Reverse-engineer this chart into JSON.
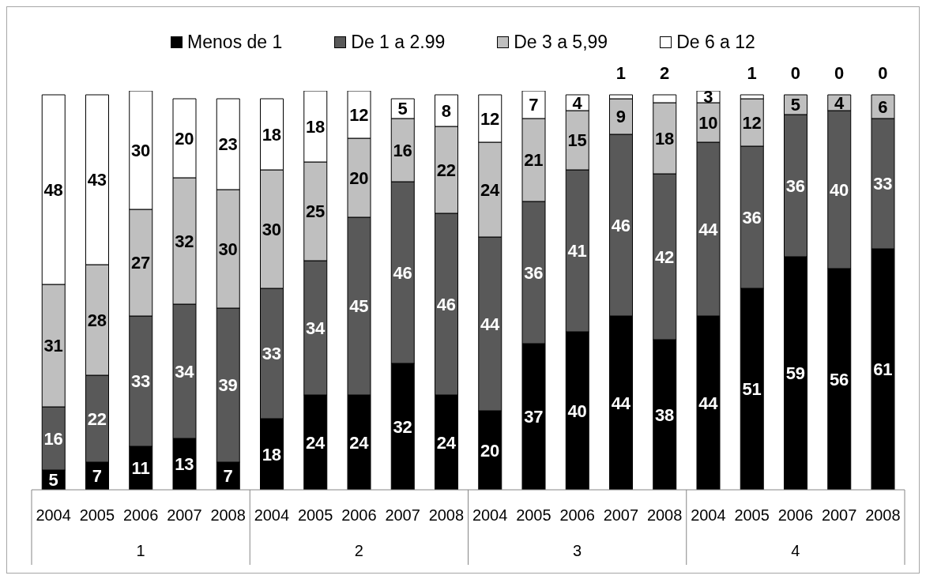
{
  "chart_data": {
    "type": "bar",
    "stacked": true,
    "data_labels": true,
    "legend": "top",
    "tick_labels": "x",
    "categories": [
      "2004",
      "2005",
      "2006",
      "2007",
      "2008",
      "2004",
      "2005",
      "2006",
      "2007",
      "2008",
      "2004",
      "2005",
      "2006",
      "2007",
      "2008",
      "2004",
      "2005",
      "2006",
      "2007",
      "2008"
    ],
    "annotations": [
      "1",
      "2",
      "3",
      "4"
    ],
    "series": [
      {
        "name": "Menos de 1",
        "color": "#000000",
        "values": [
          5,
          7,
          11,
          13,
          7,
          18,
          24,
          24,
          32,
          24,
          20,
          37,
          40,
          44,
          38,
          44,
          51,
          59,
          56,
          61
        ]
      },
      {
        "name": "De 1 a 2.99",
        "color": "#595959",
        "values": [
          16,
          22,
          33,
          34,
          39,
          33,
          34,
          45,
          46,
          46,
          44,
          36,
          41,
          46,
          42,
          44,
          36,
          36,
          40,
          33
        ]
      },
      {
        "name": "De 3 a 5,99",
        "color": "#bfbfbf",
        "values": [
          31,
          28,
          27,
          32,
          30,
          30,
          25,
          20,
          16,
          22,
          24,
          21,
          15,
          9,
          18,
          10,
          12,
          5,
          4,
          6
        ]
      },
      {
        "name": "De 6 a 12",
        "color": "#ffffff",
        "values": [
          48,
          43,
          30,
          20,
          23,
          18,
          18,
          12,
          5,
          8,
          12,
          7,
          4,
          1,
          2,
          3,
          1,
          0,
          0,
          0
        ]
      }
    ]
  }
}
